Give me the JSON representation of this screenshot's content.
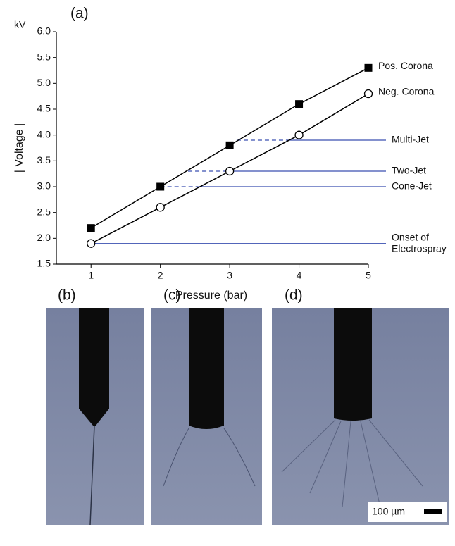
{
  "chart_data": {
    "type": "line",
    "panel_label": "(a)",
    "y_unit": "kV",
    "x_label": "Pressure (bar)",
    "y_label": "| Voltage |",
    "x": [
      1,
      2,
      3,
      4,
      5
    ],
    "series": [
      {
        "name": "Pos. Corona",
        "color": "#000000",
        "marker": "square",
        "values": [
          2.2,
          3.0,
          3.8,
          4.6,
          5.3
        ]
      },
      {
        "name": "Neg. Corona",
        "color": "#000000",
        "marker": "circle",
        "values": [
          1.9,
          2.6,
          3.3,
          4.0,
          4.8
        ]
      }
    ],
    "thresholds": [
      {
        "label_lines": [
          "Multi-Jet"
        ],
        "value": 3.9,
        "dashed": [
          3.1,
          3.85
        ],
        "color": "#3a4fb0"
      },
      {
        "label_lines": [
          "Two-Jet"
        ],
        "value": 3.3,
        "dashed": [
          2.4,
          3.0
        ],
        "color": "#3a4fb0"
      },
      {
        "label_lines": [
          "Cone-Jet"
        ],
        "value": 3.0,
        "dashed": [
          2.0,
          2.55
        ],
        "color": "#3a4fb0"
      },
      {
        "label_lines": [
          "Onset of",
          "Electrospray"
        ],
        "value": 1.9,
        "dashed": [
          1.0,
          1.0
        ],
        "color": "#3a4fb0"
      }
    ],
    "xlim": [
      0.5,
      5
    ],
    "ylim": [
      1.5,
      6.0
    ],
    "xticks": [
      1,
      2,
      3,
      4,
      5
    ],
    "yticks": [
      {
        "value": 1.5,
        "label": "1.5"
      },
      {
        "value": 2,
        "label": "2.0"
      },
      {
        "value": 2.5,
        "label": "2.5"
      },
      {
        "value": 3,
        "label": "3.0"
      },
      {
        "value": 3.5,
        "label": "3.5"
      },
      {
        "value": 4,
        "label": "4.0"
      },
      {
        "value": 4.5,
        "label": "4.5"
      },
      {
        "value": 5,
        "label": "5.0"
      },
      {
        "value": 5.5,
        "label": "5.5"
      },
      {
        "value": 6,
        "label": "6.0"
      }
    ]
  },
  "photos": {
    "labels": [
      "(b)",
      "(c)",
      "(d)"
    ],
    "scale_bar": "100 µm"
  }
}
